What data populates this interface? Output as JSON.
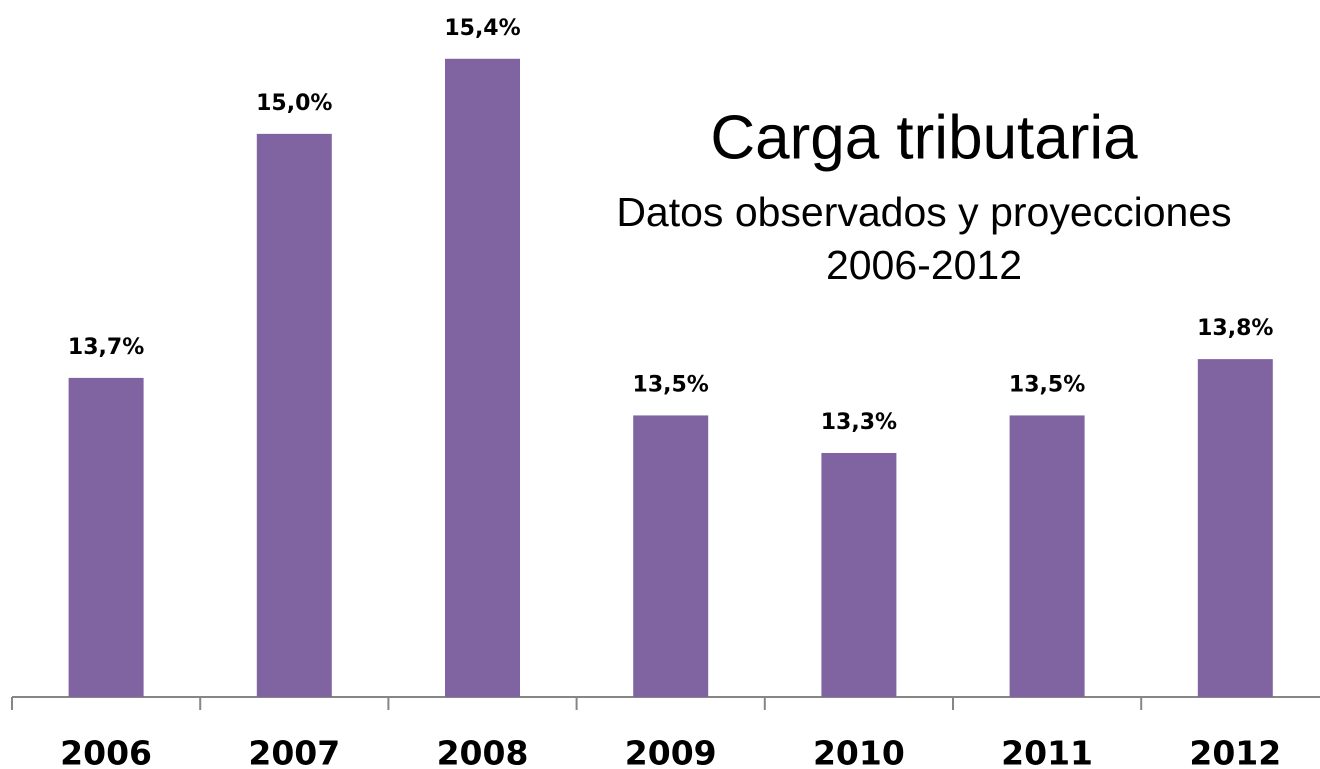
{
  "chart_data": {
    "type": "bar",
    "title": "Carga tributaria",
    "subtitle": [
      "Datos observados y proyecciones",
      "2006-2012"
    ],
    "categories": [
      "2006",
      "2007",
      "2008",
      "2009",
      "2010",
      "2011",
      "2012"
    ],
    "values": [
      13.7,
      15.0,
      15.4,
      13.5,
      13.3,
      13.5,
      13.8
    ],
    "value_labels": [
      "13,7%",
      "15,0%",
      "15,4%",
      "13,5%",
      "13,3%",
      "13,5%",
      "13,8%"
    ],
    "color": "#8064a2",
    "ylim": [
      12,
      15.5
    ]
  }
}
